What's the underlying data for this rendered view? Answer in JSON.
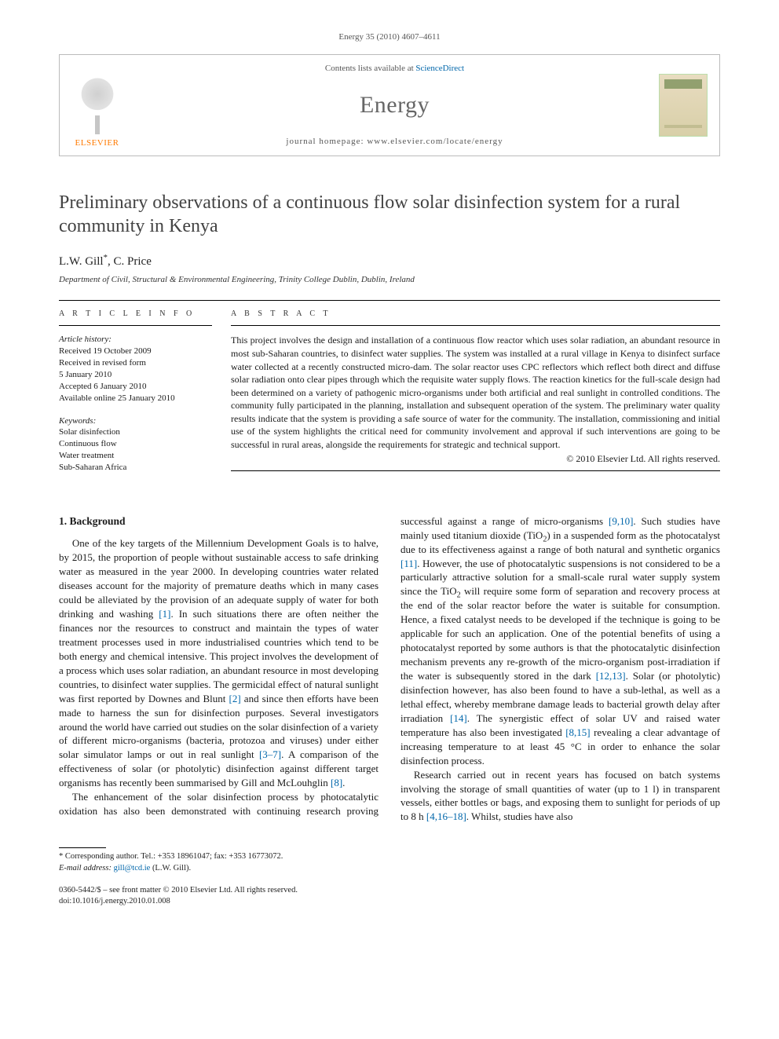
{
  "citation": "Energy 35 (2010) 4607–4611",
  "masthead": {
    "publisher_logo_text": "ELSEVIER",
    "contents_prefix": "Contents lists available at ",
    "contents_link": "ScienceDirect",
    "journal": "Energy",
    "homepage_prefix": "journal homepage: ",
    "homepage": "www.elsevier.com/locate/energy",
    "cover_label": "ENERGY"
  },
  "title": "Preliminary observations of a continuous flow solar disinfection system for a rural community in Kenya",
  "authors": "L.W. Gill",
  "author_marker": "*",
  "authors_rest": ", C. Price",
  "affiliation": "Department of Civil, Structural & Environmental Engineering, Trinity College Dublin, Dublin, Ireland",
  "headings": {
    "article_info": "A R T I C L E   I N F O",
    "abstract": "A B S T R A C T"
  },
  "article_info": {
    "history_head": "Article history:",
    "received": "Received 19 October 2009",
    "revised_l1": "Received in revised form",
    "revised_l2": "5 January 2010",
    "accepted": "Accepted 6 January 2010",
    "online": "Available online 25 January 2010",
    "keywords_head": "Keywords:",
    "kw1": "Solar disinfection",
    "kw2": "Continuous flow",
    "kw3": "Water treatment",
    "kw4": "Sub-Saharan Africa"
  },
  "abstract": "This project involves the design and installation of a continuous flow reactor which uses solar radiation, an abundant resource in most sub-Saharan countries, to disinfect water supplies. The system was installed at a rural village in Kenya to disinfect surface water collected at a recently constructed micro-dam. The solar reactor uses CPC reflectors which reflect both direct and diffuse solar radiation onto clear pipes through which the requisite water supply flows. The reaction kinetics for the full-scale design had been determined on a variety of pathogenic micro-organisms under both artificial and real sunlight in controlled conditions. The community fully participated in the planning, installation and subsequent operation of the system. The preliminary water quality results indicate that the system is providing a safe source of water for the community. The installation, commissioning and initial use of the system highlights the critical need for community involvement and approval if such interventions are going to be successful in rural areas, alongside the requirements for strategic and technical support.",
  "copyright": "© 2010 Elsevier Ltd. All rights reserved.",
  "section1_head": "1. Background",
  "para1a": "One of the key targets of the Millennium Development Goals is to halve, by 2015, the proportion of people without sustainable access to safe drinking water as measured in the year 2000. In developing countries water related diseases account for the majority of premature deaths which in many cases could be alleviated by the provision of an adequate supply of water for both drinking and washing ",
  "ref1": "[1]",
  "para1b": ". In such situations there are often neither the finances nor the resources to construct and maintain the types of water treatment processes used in more industrialised countries which tend to be both energy and chemical intensive. This project involves the development of a process which uses solar radiation, an abundant resource in most developing countries, to disinfect water supplies. The germicidal effect of natural sunlight was first reported by Downes and Blunt ",
  "ref2": "[2]",
  "para1c": " and since then efforts have been made to harness the sun for disinfection purposes. Several investigators around the world have carried out studies on the solar disinfection of a variety of different micro-organisms (bacteria, protozoa and viruses) under either solar simulator lamps or out in real sunlight ",
  "ref3_7": "[3–7]",
  "para1d": ". A comparison of the effectiveness of solar (or photolytic) disinfection against different target organisms has recently been summarised by Gill and McLouhglin ",
  "ref8a": "[8]",
  "para1e": ".",
  "para2a": "The enhancement of the solar disinfection process by photocatalytic oxidation has also been demonstrated with continuing research proving successful against a range of micro-organisms ",
  "ref9_10": "[9,10]",
  "para2b": ". Such studies have mainly used titanium dioxide (TiO",
  "sub2a": "2",
  "para2c": ") in a suspended form as the photocatalyst due to its effectiveness against a range of both natural and synthetic organics ",
  "ref11": "[11]",
  "para2d": ". However, the use of photocatalytic suspensions is not considered to be a particularly attractive solution for a small-scale rural water supply system since the TiO",
  "sub2b": "2",
  "para2e": " will require some form of separation and recovery process at the end of the solar reactor before the water is suitable for consumption. Hence, a fixed catalyst needs to be developed if the technique is going to be applicable for such an application. One of the potential benefits of using a photocatalyst reported by some authors is that the photocatalytic disinfection mechanism prevents any re-growth of the micro-organism post-irradiation if the water is subsequently stored in the dark ",
  "ref12_13": "[12,13]",
  "para2f": ". Solar (or photolytic) disinfection however, has also been found to have a sub-lethal, as well as a lethal effect, whereby membrane damage leads to bacterial growth delay after irradiation ",
  "ref14": "[14]",
  "para2g": ". The synergistic effect of solar UV and raised water temperature has also been investigated ",
  "ref8_15": "[8,15]",
  "para2h": " revealing a clear advantage of increasing temperature to at least 45 °C in order to enhance the solar disinfection process.",
  "para3a": "Research carried out in recent years has focused on batch systems involving the storage of small quantities of water (up to 1 l) in transparent vessels, either bottles or bags, and exposing them to sunlight for periods of up to 8 h ",
  "ref4_16_18": "[4,16–18]",
  "para3b": ". Whilst, studies have also",
  "footnote": {
    "corr_label": "* Corresponding author. Tel.: +353 18961047; fax: +353 16773072.",
    "email_label": "E-mail address:",
    "email": "gill@tcd.ie",
    "email_owner": "(L.W. Gill)."
  },
  "footer": {
    "line1": "0360-5442/$ – see front matter © 2010 Elsevier Ltd. All rights reserved.",
    "line2": "doi:10.1016/j.energy.2010.01.008"
  },
  "colors": {
    "link": "#0066aa",
    "publisher_orange": "#ff7a00",
    "title_gray": "#434343",
    "journal_gray": "#666666",
    "rule_black": "#000000"
  }
}
